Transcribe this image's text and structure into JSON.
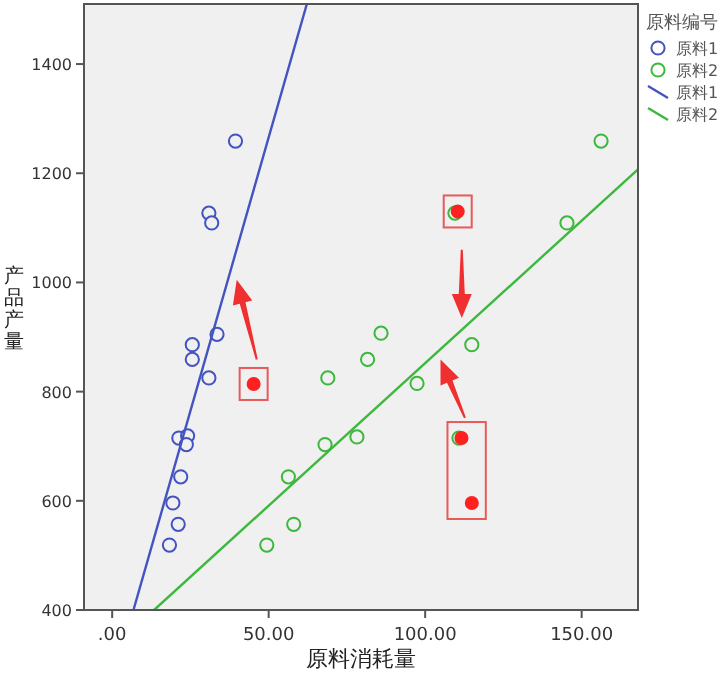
{
  "chart_data": {
    "type": "scatter",
    "xlabel": "原料消耗量",
    "ylabel": "产品产量",
    "legend_title": "原料编号",
    "legend": "right",
    "marker": "circle",
    "grid": false,
    "xlim": [
      -9,
      168
    ],
    "ylim": [
      400,
      1510
    ],
    "xticks": [
      {
        "value": 0,
        "label": ".00"
      },
      {
        "value": 50,
        "label": "50.00"
      },
      {
        "value": 100,
        "label": "100.00"
      },
      {
        "value": 150,
        "label": "150.00"
      }
    ],
    "yticks": [
      400,
      600,
      800,
      1000,
      1200,
      1400
    ],
    "series": [
      {
        "name": "原料1",
        "type": "scatter",
        "color": "#4353c0",
        "x": [
          39.4,
          30.9,
          31.8,
          33.5,
          25.6,
          25.6,
          30.9,
          21.3,
          24.1,
          23.7,
          21.9,
          19.4,
          21.1,
          18.3
        ],
        "values": [
          1259,
          1127,
          1109,
          905,
          886,
          859,
          825,
          715,
          719,
          703,
          644,
          596,
          557,
          519
        ]
      },
      {
        "name": "原料2",
        "type": "scatter",
        "color": "#3cb83c",
        "x": [
          56.3,
          49.4,
          58.0,
          68.9,
          68.0,
          78.2,
          81.6,
          85.9,
          97.4,
          114.9,
          145.3,
          156.2,
          109.5,
          110.8
        ],
        "values": [
          644,
          519,
          557,
          825,
          703,
          717,
          859,
          907,
          815,
          886,
          1109,
          1259,
          1127,
          715
        ]
      },
      {
        "name": "原料1",
        "type": "line",
        "marker": "none",
        "color": "#4353c0",
        "x": [
          6.8,
          62.2
        ],
        "values": [
          400,
          1510
        ]
      },
      {
        "name": "原料2",
        "type": "line",
        "marker": "none",
        "color": "#3cb83c",
        "x": [
          13.4,
          168
        ],
        "values": [
          400,
          1207
        ]
      },
      {
        "type": "scatter",
        "color": "#ff2020",
        "x": [
          45.2,
          110.4,
          111.6,
          114.9
        ],
        "values": [
          814,
          1130,
          715,
          596
        ]
      }
    ]
  }
}
